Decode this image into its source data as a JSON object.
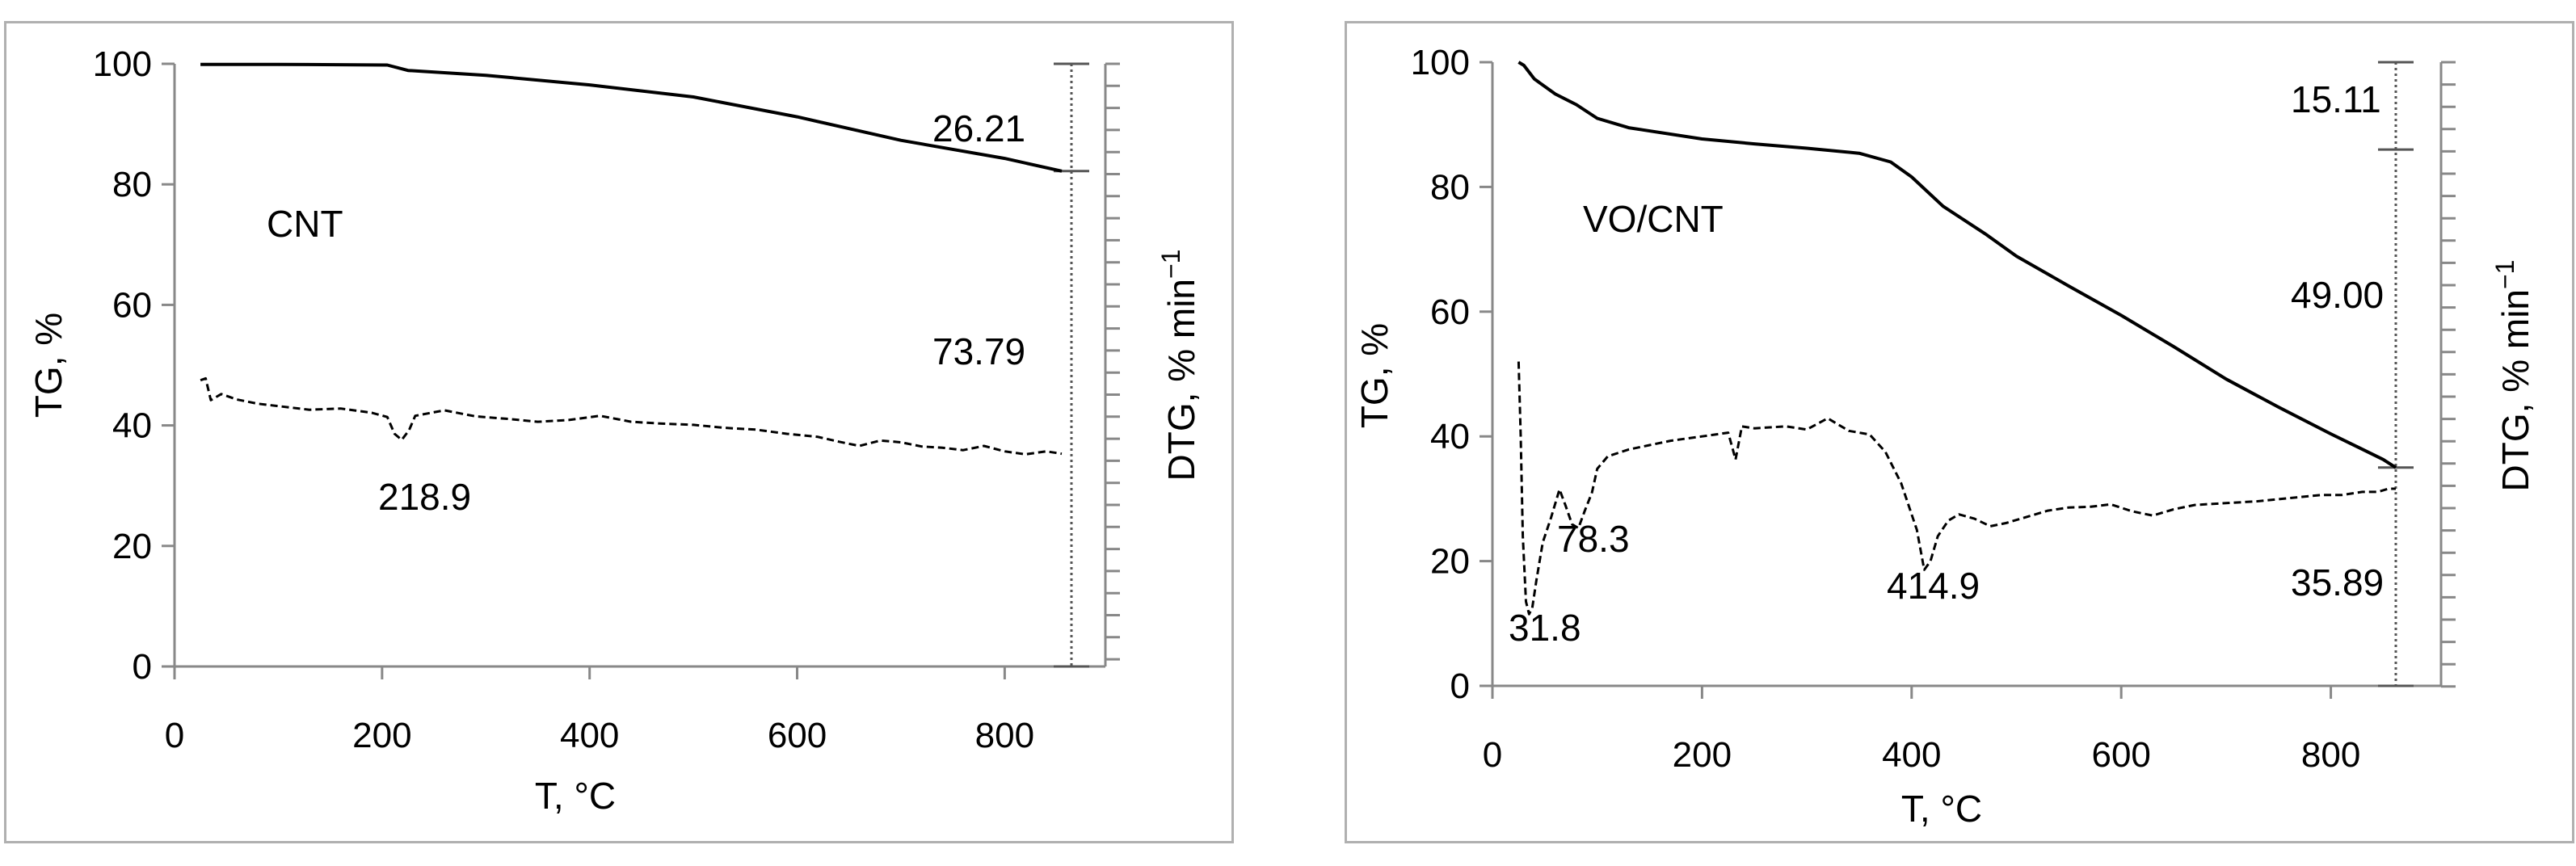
{
  "chart_data": [
    {
      "type": "line",
      "label": "CNT",
      "xlabel": "T, °C",
      "ylabel": "TG, %",
      "y2label": "DTG, % min",
      "y2label_sup": "−1",
      "xlim": [
        0,
        900
      ],
      "ylim": [
        0,
        100
      ],
      "x_ticks": [
        "0",
        "200",
        "400",
        "600",
        "800"
      ],
      "y_ticks": [
        "0",
        "20",
        "40",
        "60",
        "80",
        "100"
      ],
      "series": [
        {
          "name": "TG",
          "style": "solid",
          "points": [
            [
              25,
              99.9
            ],
            [
              100,
              99.9
            ],
            [
              205,
              99.8
            ],
            [
              225,
              98.9
            ],
            [
              300,
              98.1
            ],
            [
              400,
              96.5
            ],
            [
              500,
              94.5
            ],
            [
              600,
              91.2
            ],
            [
              700,
              87.3
            ],
            [
              800,
              84.3
            ],
            [
              855,
              82.2
            ]
          ]
        },
        {
          "name": "DTG",
          "style": "dashed",
          "points": [
            [
              25,
              47.5
            ],
            [
              30,
              47.8
            ],
            [
              35,
              44.2
            ],
            [
              45,
              45.2
            ],
            [
              60,
              44.3
            ],
            [
              80,
              43.6
            ],
            [
              100,
              43.2
            ],
            [
              130,
              42.6
            ],
            [
              160,
              42.8
            ],
            [
              190,
              42.1
            ],
            [
              205,
              41.4
            ],
            [
              212,
              38.6
            ],
            [
              219,
              37.6
            ],
            [
              226,
              39.2
            ],
            [
              232,
              41.6
            ],
            [
              260,
              42.5
            ],
            [
              290,
              41.5
            ],
            [
              320,
              41.1
            ],
            [
              350,
              40.6
            ],
            [
              380,
              40.9
            ],
            [
              410,
              41.6
            ],
            [
              440,
              40.6
            ],
            [
              470,
              40.3
            ],
            [
              500,
              40.1
            ],
            [
              530,
              39.6
            ],
            [
              560,
              39.3
            ],
            [
              590,
              38.6
            ],
            [
              620,
              38.1
            ],
            [
              640,
              37.3
            ],
            [
              660,
              36.6
            ],
            [
              680,
              37.5
            ],
            [
              700,
              37.2
            ],
            [
              720,
              36.5
            ],
            [
              740,
              36.3
            ],
            [
              760,
              35.9
            ],
            [
              780,
              36.6
            ],
            [
              800,
              35.7
            ],
            [
              820,
              35.2
            ],
            [
              840,
              35.7
            ],
            [
              855,
              35.3
            ]
          ]
        }
      ],
      "annotations": [
        "26.21",
        "73.79",
        "218.9"
      ]
    },
    {
      "type": "line",
      "label": "VO/CNT",
      "xlabel": "T, °C",
      "ylabel": "TG, %",
      "y2label": "DTG, % min",
      "y2label_sup": "−1",
      "xlim": [
        0,
        900
      ],
      "ylim": [
        0,
        100
      ],
      "x_ticks": [
        "0",
        "200",
        "400",
        "600",
        "800"
      ],
      "y_ticks": [
        "0",
        "20",
        "40",
        "60",
        "80",
        "100"
      ],
      "series": [
        {
          "name": "TG",
          "style": "solid",
          "points": [
            [
              25,
              100
            ],
            [
              30,
              99.5
            ],
            [
              40,
              97.3
            ],
            [
              60,
              94.9
            ],
            [
              80,
              93.2
            ],
            [
              100,
              91.0
            ],
            [
              130,
              89.5
            ],
            [
              200,
              87.7
            ],
            [
              250,
              86.9
            ],
            [
              300,
              86.2
            ],
            [
              350,
              85.4
            ],
            [
              380,
              84.0
            ],
            [
              400,
              81.6
            ],
            [
              430,
              76.9
            ],
            [
              470,
              72.5
            ],
            [
              500,
              68.9
            ],
            [
              550,
              64.1
            ],
            [
              600,
              59.4
            ],
            [
              650,
              54.4
            ],
            [
              700,
              49.2
            ],
            [
              750,
              44.7
            ],
            [
              800,
              40.4
            ],
            [
              850,
              36.3
            ],
            [
              862,
              35.0
            ]
          ]
        },
        {
          "name": "DTG",
          "style": "dashed",
          "points": [
            [
              25,
              52
            ],
            [
              27,
              40
            ],
            [
              29,
              24
            ],
            [
              32,
              13.5
            ],
            [
              35,
              11.5
            ],
            [
              38,
              12.5
            ],
            [
              42,
              17
            ],
            [
              48,
              23
            ],
            [
              56,
              27
            ],
            [
              64,
              31.5
            ],
            [
              70,
              28.8
            ],
            [
              76,
              25.9
            ],
            [
              82,
              25.3
            ],
            [
              88,
              28
            ],
            [
              95,
              31
            ],
            [
              100,
              34.8
            ],
            [
              110,
              36.8
            ],
            [
              130,
              37.9
            ],
            [
              150,
              38.6
            ],
            [
              170,
              39.3
            ],
            [
              200,
              40.0
            ],
            [
              225,
              40.6
            ],
            [
              232,
              36.3
            ],
            [
              238,
              41.6
            ],
            [
              250,
              41.3
            ],
            [
              280,
              41.6
            ],
            [
              300,
              41.1
            ],
            [
              320,
              42.9
            ],
            [
              340,
              40.9
            ],
            [
              360,
              40.3
            ],
            [
              375,
              37.5
            ],
            [
              390,
              32.5
            ],
            [
              405,
              25
            ],
            [
              412,
              18.6
            ],
            [
              418,
              20
            ],
            [
              425,
              24
            ],
            [
              435,
              26.5
            ],
            [
              445,
              27.5
            ],
            [
              460,
              26.8
            ],
            [
              475,
              25.6
            ],
            [
              490,
              26.1
            ],
            [
              510,
              27.1
            ],
            [
              530,
              28.1
            ],
            [
              550,
              28.6
            ],
            [
              570,
              28.7
            ],
            [
              590,
              29.1
            ],
            [
              610,
              28.0
            ],
            [
              630,
              27.3
            ],
            [
              650,
              28.3
            ],
            [
              670,
              29.0
            ],
            [
              700,
              29.3
            ],
            [
              730,
              29.6
            ],
            [
              760,
              30.1
            ],
            [
              790,
              30.6
            ],
            [
              810,
              30.6
            ],
            [
              830,
              31.1
            ],
            [
              845,
              31.1
            ],
            [
              855,
              31.6
            ],
            [
              862,
              31.6
            ]
          ]
        }
      ],
      "annotations": [
        "15.11",
        "49.00",
        "35.89",
        "31.8",
        "78.3",
        "414.9"
      ]
    }
  ]
}
